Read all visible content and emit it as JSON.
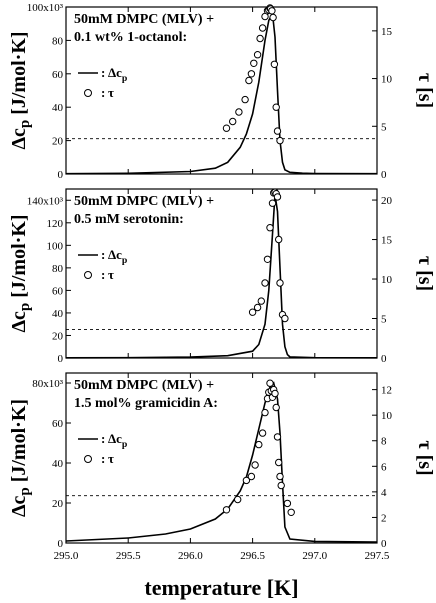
{
  "chart_data": {
    "type": "line",
    "xlabel": "temperature [K]",
    "xlim": [
      295.0,
      297.5
    ],
    "xticks": [
      "295.0",
      "295.5",
      "296.0",
      "296.5",
      "297.0",
      "297.5"
    ],
    "xtick_values": [
      295.0,
      295.5,
      296.0,
      296.5,
      297.0,
      297.5
    ],
    "panels": [
      {
        "annotation": [
          "50mM DMPC (MLV) +",
          "0.1 wt% 1-octanol:"
        ],
        "ylabel_left": "Δc_p [J/mol·K]",
        "ylabel_right": "τ [s]",
        "ylim_left": [
          0,
          100000
        ],
        "left_tick_values": [
          0,
          20000,
          40000,
          60000,
          80000,
          100000
        ],
        "left_tick_labels": [
          "0",
          "20",
          "40",
          "60",
          "80",
          "100x10³"
        ],
        "ylim_right": [
          0,
          17.5
        ],
        "right_tick_values": [
          0,
          5,
          10,
          15
        ],
        "right_tick_labels": [
          "0",
          "5",
          "10",
          "15"
        ],
        "dashed_level_tau": 3.7,
        "legend": [
          {
            "label": "Δc_p",
            "marker": "line"
          },
          {
            "label": "τ",
            "marker": "circle"
          }
        ],
        "series": [
          {
            "name": "Δc_p",
            "axis": "left",
            "x": [
              295.0,
              295.5,
              296.0,
              296.2,
              296.3,
              296.4,
              296.45,
              296.5,
              296.55,
              296.6,
              296.63,
              296.66,
              296.68,
              296.7,
              296.72,
              296.74,
              296.76,
              296.8,
              296.9,
              297.0,
              297.5
            ],
            "y": [
              200,
              400,
              1500,
              3500,
              7000,
              16000,
              24000,
              36000,
              55000,
              80000,
              92000,
              96000,
              82000,
              50000,
              20000,
              7000,
              2500,
              1000,
              500,
              300,
              200
            ]
          },
          {
            "name": "τ",
            "axis": "right",
            "x": [
              296.29,
              296.34,
              296.39,
              296.44,
              296.47,
              296.49,
              296.51,
              296.54,
              296.56,
              296.58,
              296.6,
              296.62,
              296.63,
              296.64,
              296.645,
              296.655,
              296.665,
              296.675,
              296.69,
              296.7,
              296.72
            ],
            "y": [
              4.8,
              5.5,
              6.5,
              7.8,
              9.8,
              10.5,
              11.6,
              12.5,
              14.2,
              15.3,
              16.5,
              17.1,
              17.2,
              17.4,
              17.3,
              17.1,
              16.4,
              11.5,
              7.0,
              4.5,
              3.5
            ]
          }
        ]
      },
      {
        "annotation": [
          "50mM DMPC (MLV) +",
          "0.5 mM serotonin:"
        ],
        "ylabel_left": "Δc_p [J/mol·K]",
        "ylabel_right": "τ [s]",
        "ylim_left": [
          0,
          150000
        ],
        "left_tick_values": [
          0,
          20000,
          40000,
          60000,
          80000,
          100000,
          120000,
          140000
        ],
        "left_tick_labels": [
          "0",
          "20",
          "40",
          "60",
          "80",
          "100",
          "120",
          "140x10³"
        ],
        "ylim_right": [
          0,
          21.4
        ],
        "right_tick_values": [
          0,
          5,
          10,
          15,
          20
        ],
        "right_tick_labels": [
          "0",
          "5",
          "10",
          "15",
          "20"
        ],
        "dashed_level_tau": 3.6,
        "legend": [
          {
            "label": "Δc_p",
            "marker": "line"
          },
          {
            "label": "τ",
            "marker": "circle"
          }
        ],
        "series": [
          {
            "name": "Δc_p",
            "axis": "left",
            "x": [
              295.0,
              295.5,
              296.0,
              296.3,
              296.5,
              296.55,
              296.6,
              296.63,
              296.66,
              296.68,
              296.7,
              296.72,
              296.74,
              296.76,
              296.78,
              296.8,
              297.0,
              297.5
            ],
            "y": [
              200,
              300,
              800,
              2000,
              6000,
              12000,
              30000,
              60000,
              110000,
              145000,
              130000,
              80000,
              30000,
              10000,
              3000,
              1000,
              300,
              200
            ]
          },
          {
            "name": "τ",
            "axis": "right",
            "x": [
              296.5,
              296.54,
              296.57,
              296.6,
              296.62,
              296.64,
              296.66,
              296.67,
              296.68,
              296.69,
              296.7,
              296.71,
              296.72,
              296.74,
              296.76
            ],
            "y": [
              5.8,
              6.4,
              7.2,
              9.5,
              12.5,
              16.5,
              19.6,
              20.9,
              21.0,
              20.8,
              20.4,
              15.0,
              9.5,
              5.5,
              5.0
            ]
          }
        ]
      },
      {
        "annotation": [
          "50mM DMPC (MLV) +",
          "1.5 mol% gramicidin A:"
        ],
        "ylabel_left": "Δc_p [J/mol·K]",
        "ylabel_right": "τ [s]",
        "ylim_left": [
          0,
          85000
        ],
        "left_tick_values": [
          0,
          20000,
          40000,
          60000,
          80000
        ],
        "left_tick_labels": [
          "0",
          "20",
          "40",
          "60",
          "80x10³"
        ],
        "ylim_right": [
          0,
          13.3
        ],
        "right_tick_values": [
          0,
          2,
          4,
          6,
          8,
          10,
          12
        ],
        "right_tick_labels": [
          "0",
          "2",
          "4",
          "6",
          "8",
          "10",
          "12"
        ],
        "dashed_level_tau": 3.7,
        "legend": [
          {
            "label": "Δc_p",
            "marker": "line"
          },
          {
            "label": "τ",
            "marker": "circle"
          }
        ],
        "series": [
          {
            "name": "Δc_p",
            "axis": "left",
            "x": [
              295.0,
              295.5,
              295.8,
              296.0,
              296.2,
              296.3,
              296.4,
              296.45,
              296.5,
              296.55,
              296.6,
              296.64,
              296.67,
              296.7,
              296.72,
              296.74,
              296.76,
              296.8,
              297.0,
              297.5
            ],
            "y": [
              1000,
              2500,
              4500,
              7000,
              12000,
              17000,
              26000,
              33000,
              44000,
              57000,
              70000,
              78000,
              80000,
              72000,
              55000,
              30000,
              8000,
              2000,
              800,
              500
            ]
          },
          {
            "name": "τ",
            "axis": "right",
            "x": [
              296.29,
              296.38,
              296.45,
              296.49,
              296.52,
              296.55,
              296.58,
              296.6,
              296.62,
              296.63,
              296.64,
              296.65,
              296.66,
              296.67,
              296.68,
              296.69,
              296.7,
              296.71,
              296.72,
              296.73,
              296.78,
              296.81
            ],
            "y": [
              2.6,
              3.4,
              4.9,
              5.2,
              6.1,
              7.7,
              8.6,
              10.2,
              11.3,
              11.8,
              12.5,
              11.9,
              11.4,
              12.0,
              11.7,
              10.6,
              8.3,
              6.3,
              5.2,
              4.5,
              3.1,
              2.4
            ]
          }
        ]
      }
    ]
  }
}
